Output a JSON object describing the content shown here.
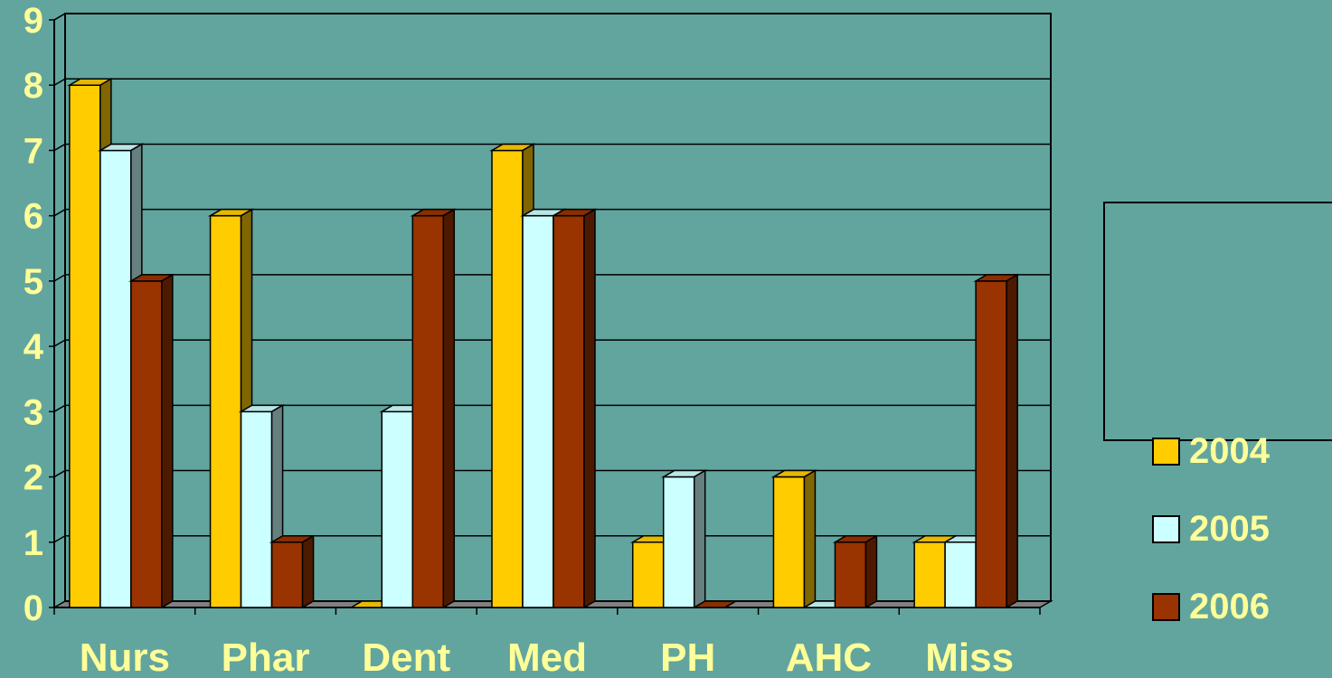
{
  "chart_data": {
    "type": "bar",
    "categories": [
      "Nurs",
      "Phar",
      "Dent",
      "Med",
      "PH",
      "AHC",
      "Miss"
    ],
    "series": [
      {
        "name": "2004",
        "values": [
          8,
          6,
          0,
          7,
          1,
          2,
          1
        ]
      },
      {
        "name": "2005",
        "values": [
          7,
          3,
          3,
          6,
          2,
          0,
          1
        ]
      },
      {
        "name": "2006",
        "values": [
          5,
          1,
          6,
          6,
          0,
          1,
          5
        ]
      }
    ],
    "y_ticks": [
      "0",
      "1",
      "2",
      "3",
      "4",
      "5",
      "6",
      "7",
      "8",
      "9"
    ],
    "ylim": [
      0,
      9
    ],
    "grid": true,
    "legend_position": "right",
    "colors": {
      "background": "#62A59E",
      "series": [
        "#FFCC00",
        "#CCFFFF",
        "#993300"
      ],
      "series_side": [
        "#806600",
        "#668080",
        "#4D1A00"
      ],
      "series_top": [
        "#E6B800",
        "#B8E6E6",
        "#8A2E00"
      ],
      "text": "#FFFF99",
      "floor": "#808080"
    }
  }
}
